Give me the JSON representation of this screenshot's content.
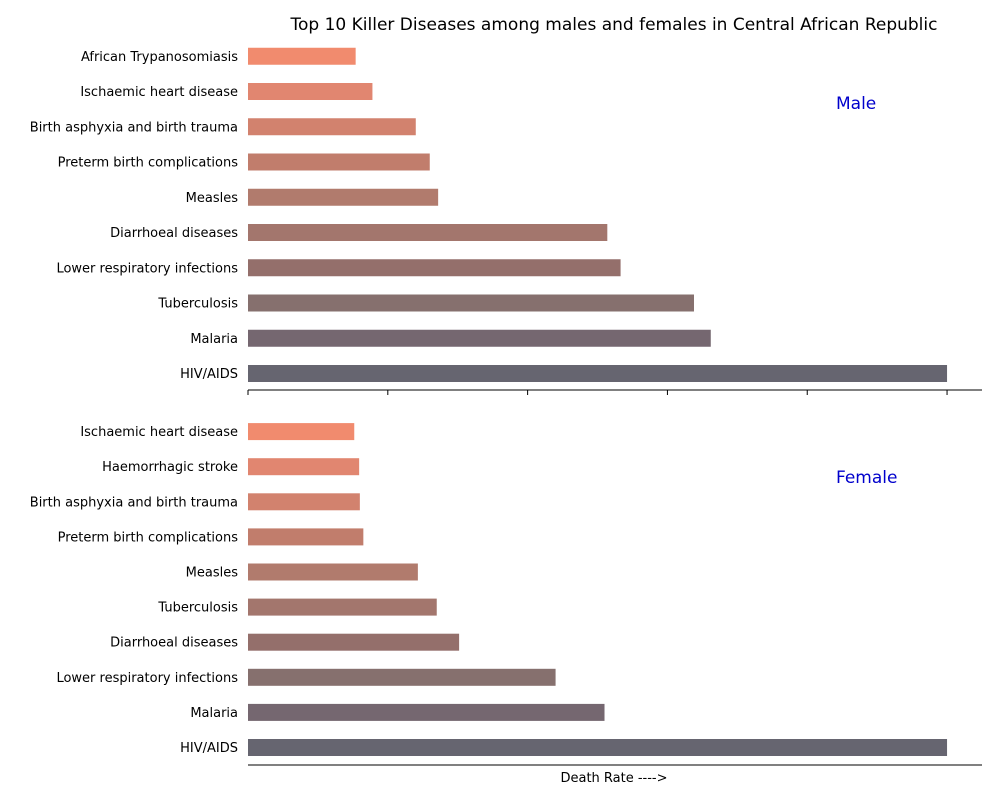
{
  "chart_data": {
    "title": "Top 10 Killer Diseases among males and females in Central African Republic",
    "xlabel": "Death Rate ---->",
    "panel_label_color": "#0000cc",
    "bar_colors": [
      "#666570",
      "#756770",
      "#86706e",
      "#946f6b",
      "#a3766d",
      "#b17b6d",
      "#c17d6c",
      "#d2826e",
      "#e18670",
      "#f18b6e"
    ],
    "panels": [
      {
        "type": "bar",
        "orientation": "horizontal",
        "label": "Male",
        "categories": [
          "HIV/AIDS",
          "Malaria",
          "Tuberculosis",
          "Lower respiratory infections",
          "Diarrhoeal diseases",
          "Measles",
          "Preterm birth complications",
          "Birth asphyxia and birth trauma",
          "Ischaemic heart disease",
          "African Trypanosomiasis"
        ],
        "values": [
          100,
          66.2,
          63.8,
          53.3,
          51.4,
          27.2,
          26.0,
          24.0,
          17.8,
          15.4
        ],
        "xlim": [
          0,
          105
        ]
      },
      {
        "type": "bar",
        "orientation": "horizontal",
        "label": "Female",
        "categories": [
          "HIV/AIDS",
          "Malaria",
          "Lower respiratory infections",
          "Diarrhoeal diseases",
          "Tuberculosis",
          "Measles",
          "Preterm birth complications",
          "Birth asphyxia and birth trauma",
          "Haemorrhagic stroke",
          "Ischaemic heart disease"
        ],
        "values": [
          100,
          51.0,
          44.0,
          30.2,
          27.0,
          24.3,
          16.5,
          16.0,
          15.9,
          15.2
        ],
        "xlim": [
          0,
          105
        ]
      }
    ]
  }
}
